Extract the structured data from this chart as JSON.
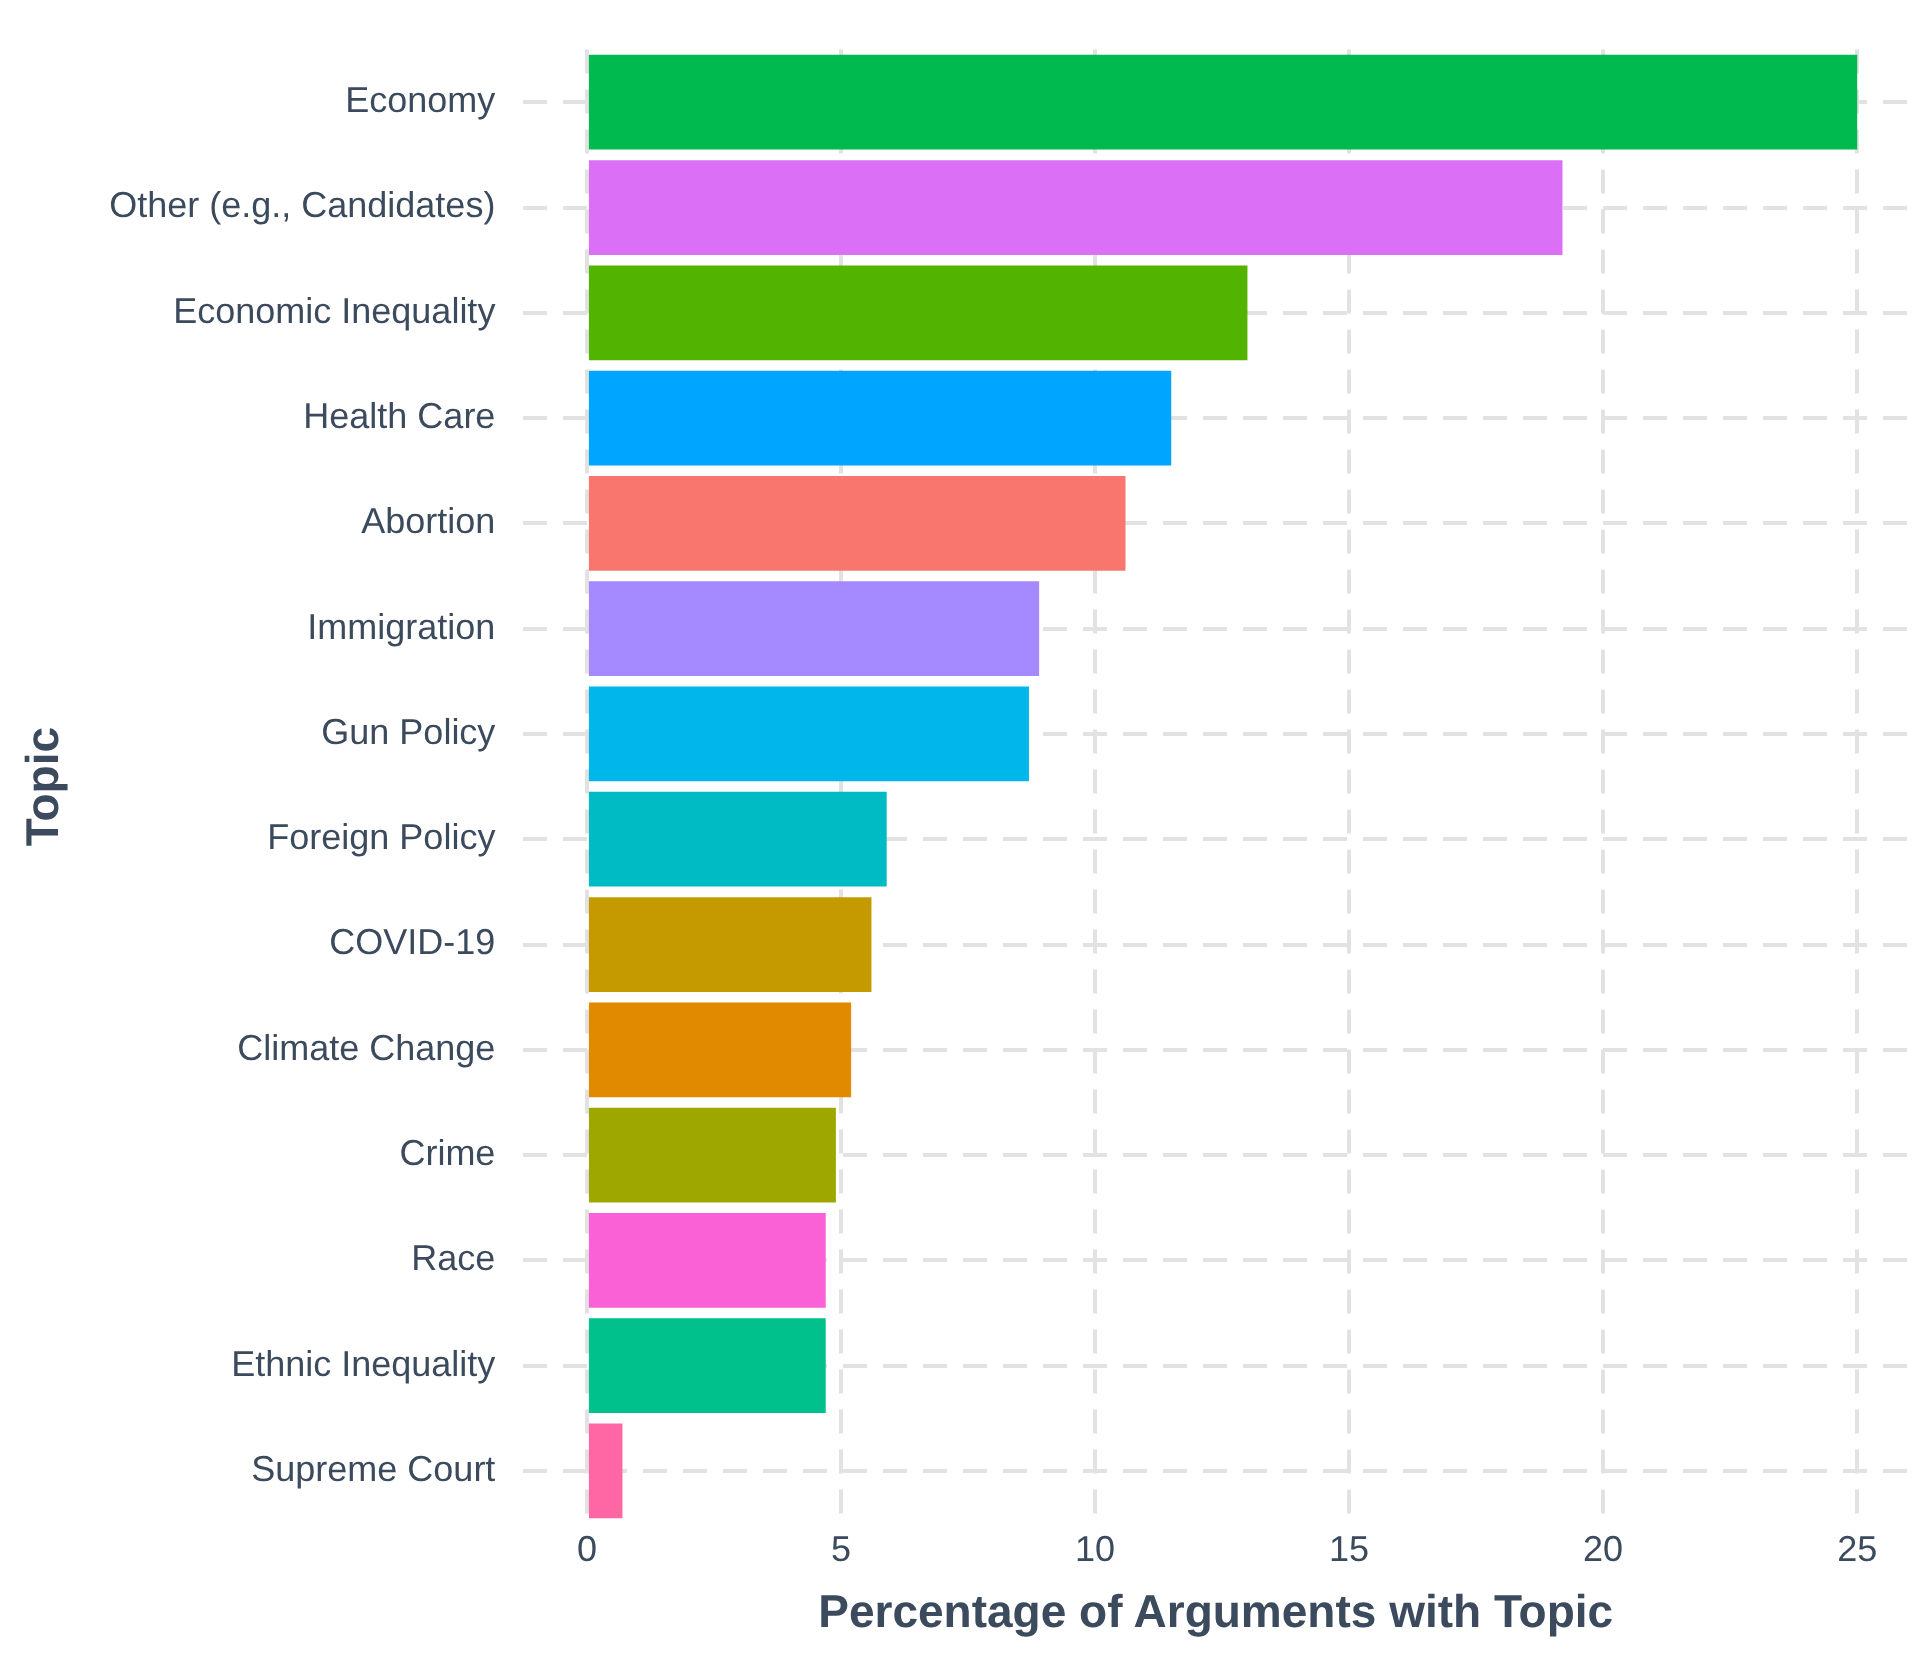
{
  "chart_data": {
    "type": "bar",
    "orientation": "horizontal",
    "xlabel": "Percentage of Arguments with Topic",
    "ylabel": "Topic",
    "categories": [
      "Economy",
      "Other (e.g., Candidates)",
      "Economic Inequality",
      "Health Care",
      "Abortion",
      "Immigration",
      "Gun Policy",
      "Foreign Policy",
      "COVID-19",
      "Climate Change",
      "Crime",
      "Race",
      "Ethnic Inequality",
      "Supreme Court"
    ],
    "values": [
      25.0,
      19.2,
      13.0,
      11.5,
      10.6,
      8.9,
      8.7,
      5.9,
      5.6,
      5.2,
      4.9,
      4.7,
      4.7,
      0.7
    ],
    "colors": [
      "#00ba50",
      "#db6ff5",
      "#53b400",
      "#00a5ff",
      "#f8766d",
      "#a58aff",
      "#00b6eb",
      "#00bbc3",
      "#c49a00",
      "#e18a00",
      "#9ea700",
      "#fb61d7",
      "#00c08b",
      "#ff67a4"
    ],
    "xlim": [
      -1.25,
      26
    ],
    "xticks": [
      0,
      5,
      10,
      15,
      20,
      25
    ],
    "grid": true,
    "legend": false
  }
}
